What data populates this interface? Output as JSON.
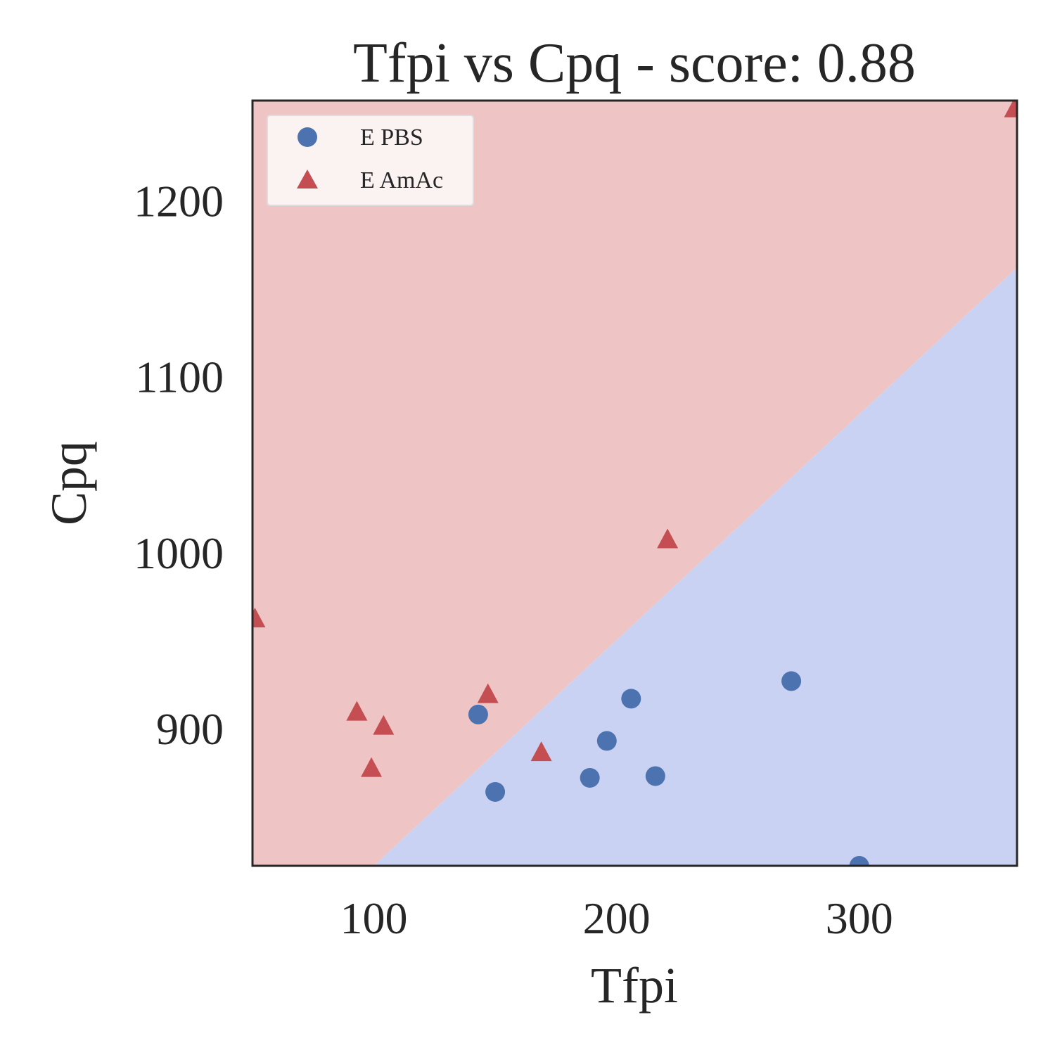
{
  "chart_data": {
    "type": "scatter",
    "title": "Tfpi vs Cpq - score: 0.88",
    "xlabel": "Tfpi",
    "ylabel": "Cpq",
    "xlim": [
      50,
      365
    ],
    "ylim": [
      822,
      1257
    ],
    "xticks": [
      100,
      200,
      300
    ],
    "yticks": [
      900,
      1000,
      1100,
      1200
    ],
    "grid": false,
    "legend_position": "top-left",
    "decision_boundary": [
      [
        100,
        822
      ],
      [
        365,
        1162
      ]
    ],
    "regions": [
      {
        "label": "E AmAc",
        "side": "above-boundary",
        "color": "#eec5c4"
      },
      {
        "label": "E PBS",
        "side": "below-boundary",
        "color": "#c9d2f2"
      }
    ],
    "series": [
      {
        "name": "E PBS",
        "marker": "circle",
        "color": "#4c72b0",
        "points": [
          [
            143,
            908
          ],
          [
            150,
            864
          ],
          [
            189,
            872
          ],
          [
            196,
            893
          ],
          [
            206,
            917
          ],
          [
            216,
            873
          ],
          [
            272,
            927
          ],
          [
            300,
            822
          ]
        ]
      },
      {
        "name": "E AmAc",
        "marker": "triangle",
        "color": "#c44e52",
        "points": [
          [
            51,
            962
          ],
          [
            93,
            909
          ],
          [
            99,
            877
          ],
          [
            104,
            901
          ],
          [
            147,
            919
          ],
          [
            169,
            886
          ],
          [
            221,
            1007
          ],
          [
            364,
            1252
          ]
        ]
      }
    ]
  }
}
